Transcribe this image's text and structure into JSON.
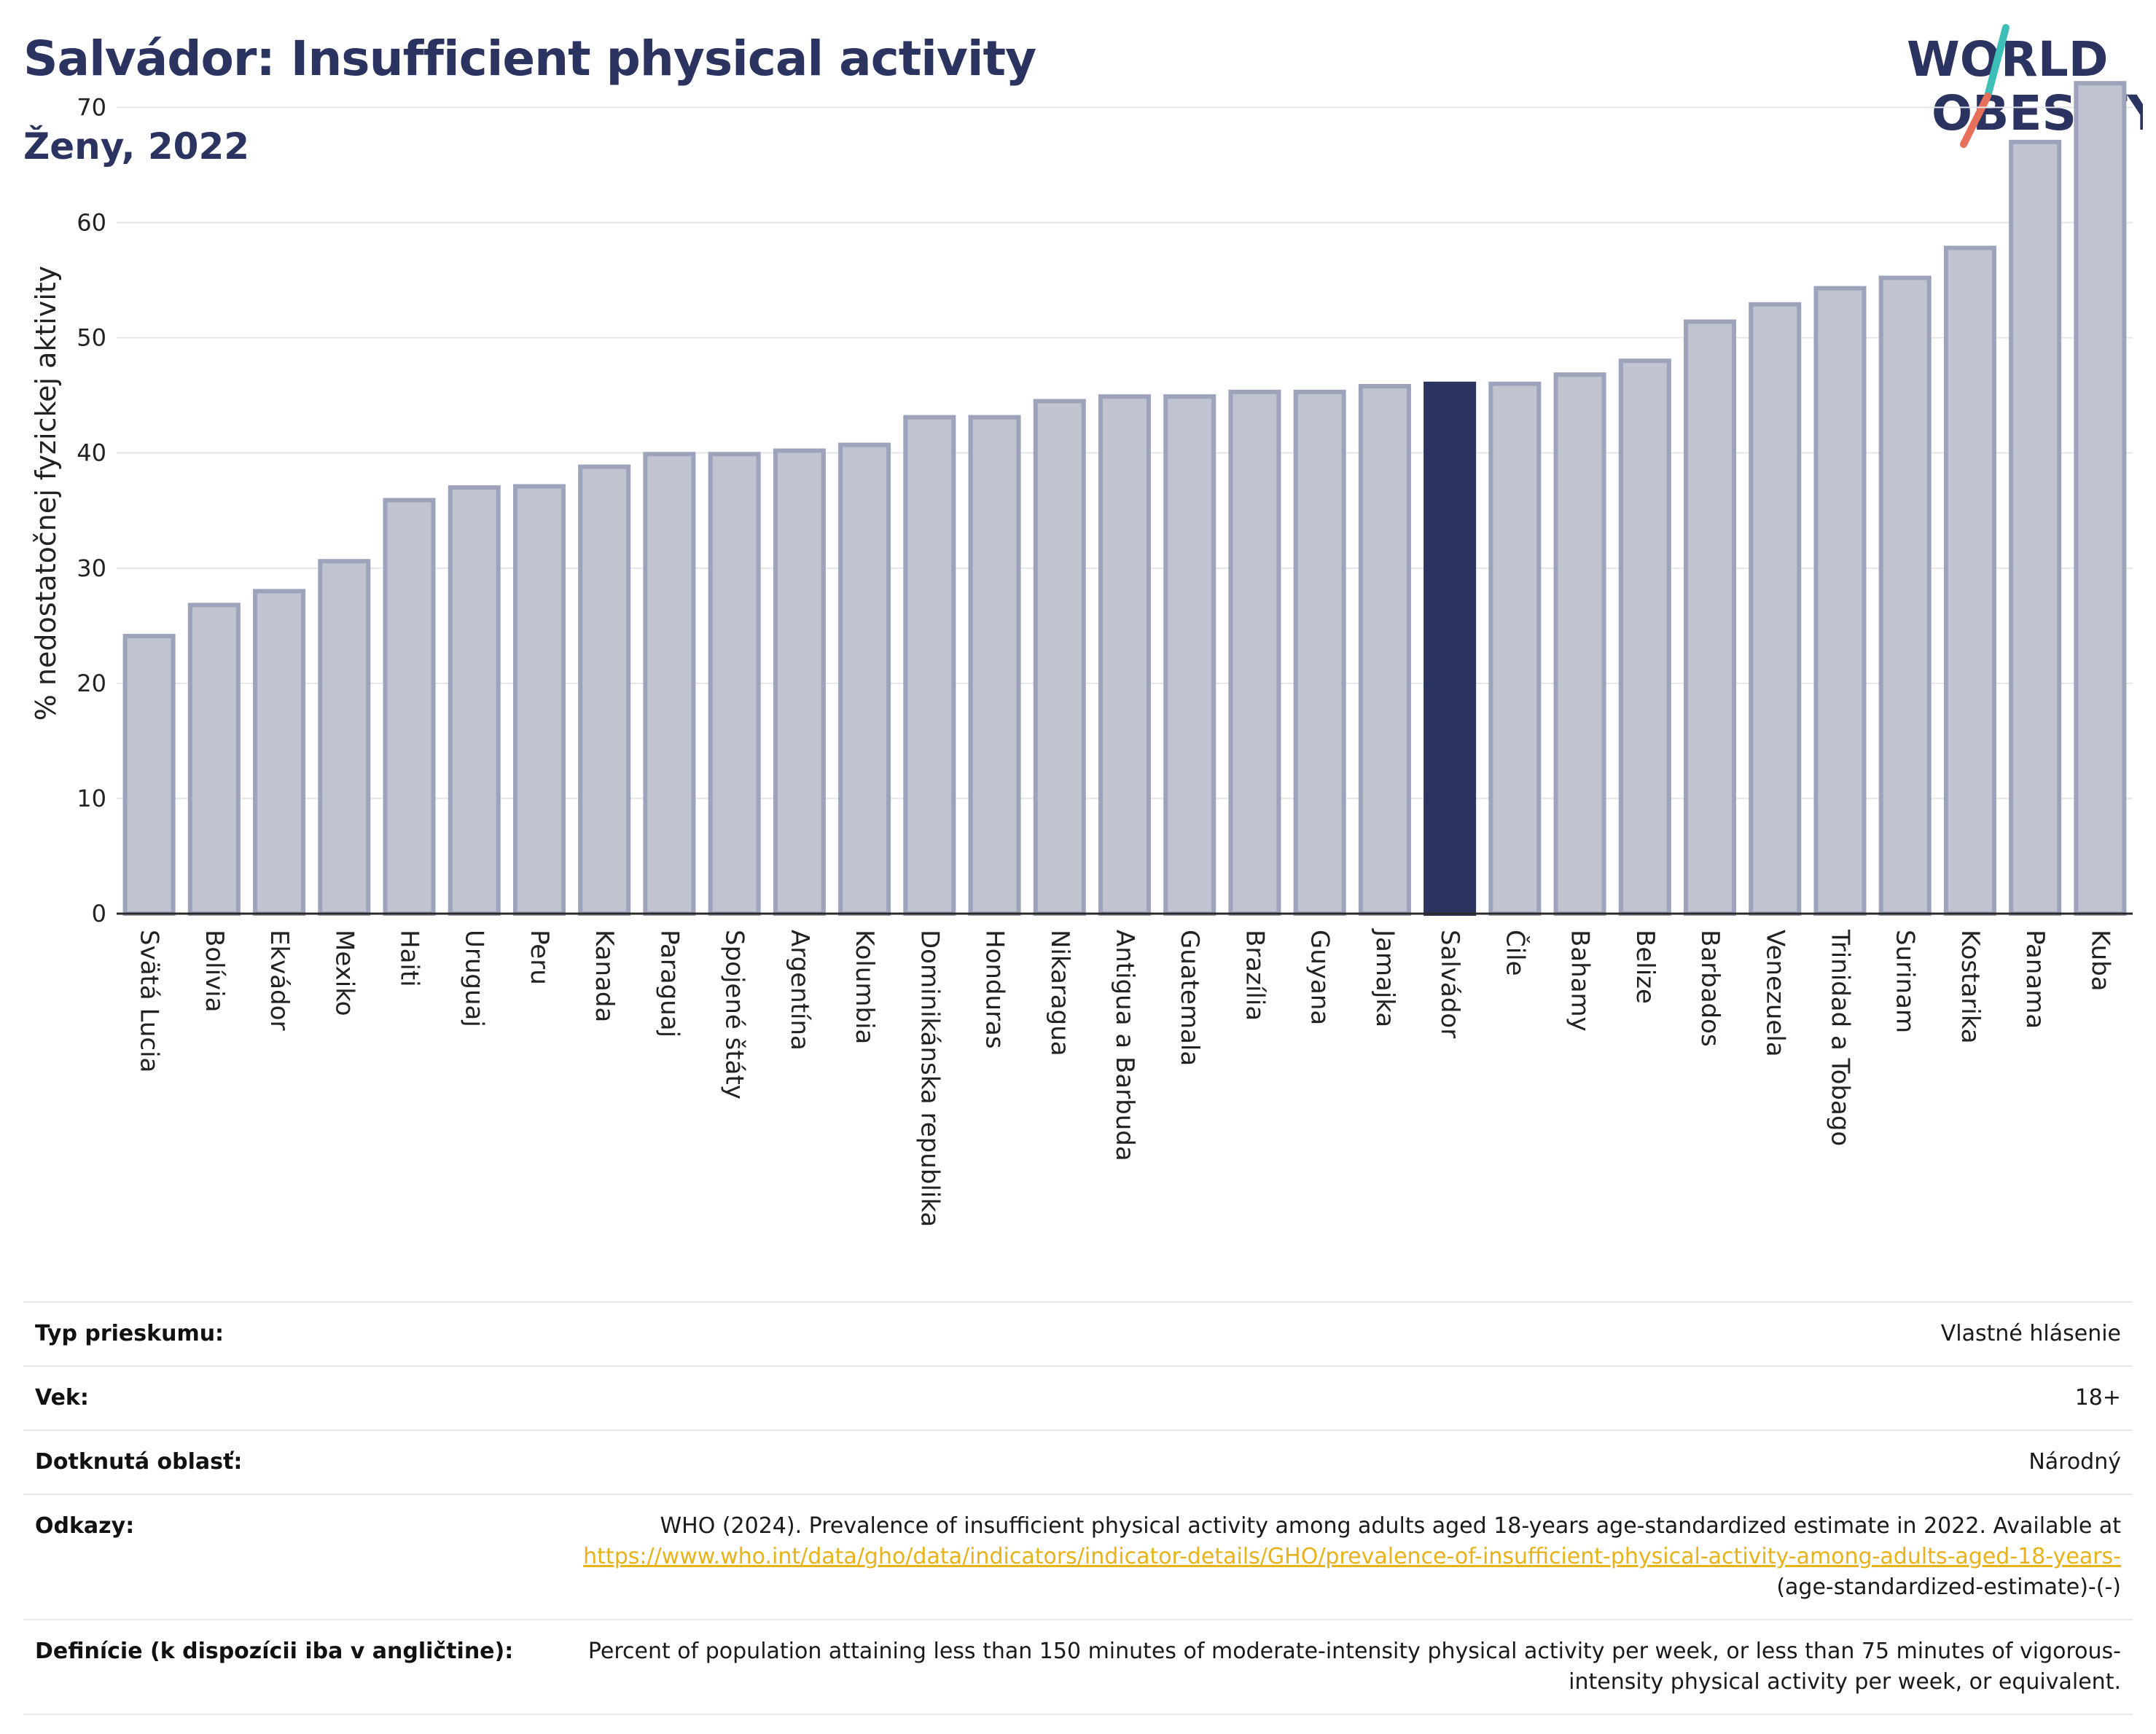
{
  "header": {
    "title": "Salvádor: Insufficient physical activity",
    "subtitle": "Ženy, 2022"
  },
  "logo": {
    "line1": "WORLD",
    "line2": "OBESITY"
  },
  "colors": {
    "highlight": "#2b3460",
    "bar_fill": "#c0c3d0",
    "bar_stroke": "#9da3ba",
    "logo_teal": "#3dbfb8",
    "logo_coral": "#e8705a",
    "link": "#e8b21a"
  },
  "chart_data": {
    "type": "bar",
    "ylabel": "% nedostatočnej fyzickej aktivity",
    "ylim": [
      0,
      73
    ],
    "yticks": [
      0,
      10,
      20,
      30,
      40,
      50,
      60,
      70
    ],
    "grid": true,
    "highlight": "Salvádor",
    "categories": [
      "Svätá Lucia",
      "Bolívia",
      "Ekvádor",
      "Mexiko",
      "Haiti",
      "Uruguaj",
      "Peru",
      "Kanada",
      "Paraguaj",
      "Spojené štáty",
      "Argentína",
      "Kolumbia",
      "Dominikánska republika",
      "Honduras",
      "Nikaragua",
      "Antigua a Barbuda",
      "Guatemala",
      "Brazília",
      "Guyana",
      "Jamajka",
      "Salvádor",
      "Čile",
      "Bahamy",
      "Belize",
      "Barbados",
      "Venezuela",
      "Trinidad a Tobago",
      "Surinam",
      "Kostarika",
      "Panama",
      "Kuba"
    ],
    "values": [
      24.1,
      26.8,
      28.0,
      30.6,
      35.9,
      37.0,
      37.1,
      38.8,
      39.9,
      39.9,
      40.2,
      40.7,
      43.1,
      43.1,
      44.5,
      44.9,
      44.9,
      45.3,
      45.3,
      45.8,
      46.0,
      46.0,
      46.8,
      48.0,
      51.4,
      52.9,
      54.3,
      55.2,
      57.8,
      67.0,
      72.1
    ]
  },
  "info": {
    "survey_type_label": "Typ prieskumu:",
    "survey_type_value": "Vlastné hlásenie",
    "age_label": "Vek:",
    "age_value": "18+",
    "area_label": "Dotknutá oblasť:",
    "area_value": "Národný",
    "references_label": "Odkazy:",
    "references_text": "WHO (2024). Prevalence of insufficient physical activity among adults aged 18-years age-standardized estimate in 2022. Available at",
    "references_link": "https://www.who.int/data/gho/data/indicators/indicator-details/GHO/prevalence-of-insufficient-physical-activity-among-adults-aged-18-years-",
    "references_suffix": "(age-standardized-estimate)-(-)",
    "definitions_label": "Definície (k dispozícii iba v angličtine):",
    "definitions_text": "Percent of population attaining less than 150 minutes of moderate-intensity physical activity per week, or less than 75 minutes of vigorous-intensity physical activity per week, or equivalent."
  }
}
